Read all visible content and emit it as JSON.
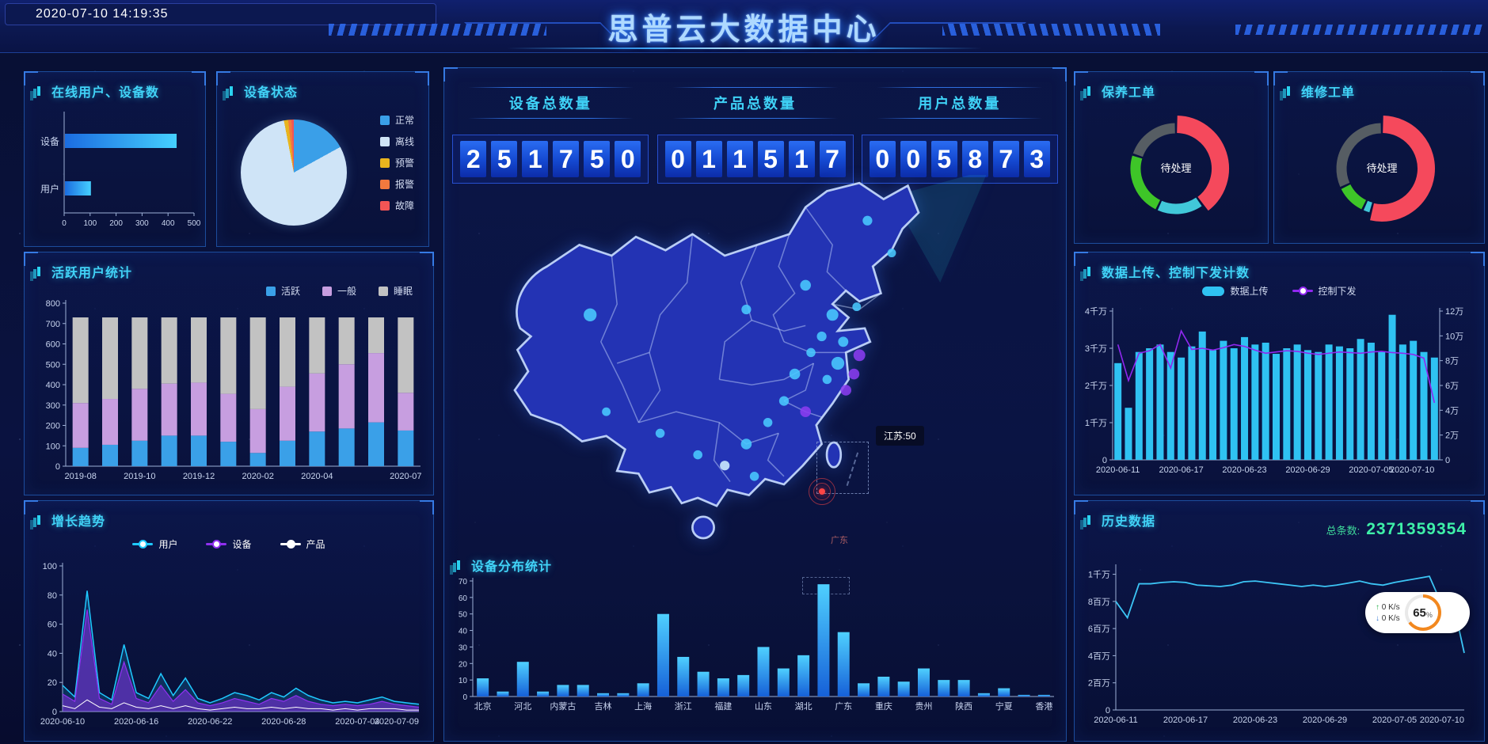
{
  "header": {
    "timestamp": "2020-07-10 14:19:35",
    "title": "思普云大数据中心"
  },
  "counters": [
    {
      "label": "设备总数量",
      "value": "251750"
    },
    {
      "label": "产品总数量",
      "value": "011517"
    },
    {
      "label": "用户总数量",
      "value": "005873"
    }
  ],
  "map": {
    "tooltip": "江苏:50",
    "region_label": "广东",
    "dot_colors": {
      "c": "#49c9ff",
      "p": "#8a3cf0",
      "w": "#cfeeff"
    },
    "points": [
      [
        38,
        52,
        2.4,
        "c"
      ],
      [
        141,
        17,
        1.8,
        "c"
      ],
      [
        150,
        29,
        1.6,
        "c"
      ],
      [
        96,
        50,
        1.8,
        "c"
      ],
      [
        118,
        41,
        2,
        "c"
      ],
      [
        128,
        52,
        2.2,
        "c"
      ],
      [
        137,
        49,
        1.6,
        "c"
      ],
      [
        124,
        60,
        1.8,
        "c"
      ],
      [
        132,
        62,
        1.9,
        "c"
      ],
      [
        138,
        67,
        2.2,
        "p"
      ],
      [
        130,
        70,
        2.4,
        "c"
      ],
      [
        136,
        74,
        2,
        "p"
      ],
      [
        126,
        76,
        1.7,
        "c"
      ],
      [
        133,
        80,
        2,
        "p"
      ],
      [
        120,
        66,
        1.7,
        "c"
      ],
      [
        114,
        74,
        2,
        "c"
      ],
      [
        110,
        84,
        1.8,
        "c"
      ],
      [
        118,
        88,
        2,
        "p"
      ],
      [
        104,
        92,
        1.7,
        "c"
      ],
      [
        96,
        100,
        2,
        "c"
      ],
      [
        88,
        108,
        1.8,
        "w"
      ],
      [
        99,
        112,
        1.7,
        "c"
      ],
      [
        78,
        104,
        1.7,
        "c"
      ],
      [
        64,
        96,
        1.7,
        "c"
      ],
      [
        44,
        88,
        1.6,
        "c"
      ]
    ]
  },
  "net_widget": {
    "up_label": "0 K/s",
    "down_label": "0 K/s",
    "percent": "65",
    "percent_suffix": "%"
  },
  "chart_data": [
    {
      "id": "online",
      "type": "bar",
      "orientation": "horizontal",
      "title": "在线用户、设备数",
      "categories": [
        "设备",
        "用户"
      ],
      "values": [
        430,
        100
      ],
      "xlim": [
        0,
        500
      ],
      "xticks": [
        0,
        100,
        200,
        300,
        400,
        500
      ]
    },
    {
      "id": "device_status",
      "type": "pie",
      "title": "设备状态",
      "legend_position": "right",
      "slices": [
        {
          "label": "正常",
          "value": 17,
          "color": "#3a9fe8"
        },
        {
          "label": "离线",
          "value": 80,
          "color": "#cfe4f7"
        },
        {
          "label": "预警",
          "value": 1.3,
          "color": "#e8b41e"
        },
        {
          "label": "报警",
          "value": 1,
          "color": "#f2793e"
        },
        {
          "label": "故障",
          "value": 0.7,
          "color": "#f25555"
        }
      ]
    },
    {
      "id": "active_users",
      "type": "bar",
      "stacked": true,
      "title": "活跃用户统计",
      "n_bars": 12,
      "xtick_labels": [
        "2019-08",
        "2019-10",
        "2019-12",
        "2020-02",
        "2020-04",
        "2020-07"
      ],
      "xtick_indices": [
        0,
        2,
        4,
        6,
        8,
        11
      ],
      "ylim": [
        0,
        800
      ],
      "ytick_step": 100,
      "series": [
        {
          "name": "活跃",
          "color": "#3aa0e8",
          "values": [
            90,
            105,
            125,
            150,
            150,
            120,
            65,
            125,
            170,
            185,
            215,
            175
          ]
        },
        {
          "name": "一般",
          "color": "#c79ee0",
          "values": [
            220,
            225,
            255,
            255,
            260,
            235,
            215,
            265,
            285,
            315,
            340,
            185
          ]
        },
        {
          "name": "睡眠",
          "color": "#c2c2c2",
          "values": [
            420,
            400,
            350,
            325,
            320,
            375,
            450,
            340,
            275,
            230,
            175,
            370
          ]
        }
      ]
    },
    {
      "id": "growth",
      "type": "line",
      "title": "增长趋势",
      "n_points": 30,
      "xtick_labels": [
        "2020-06-10",
        "2020-06-16",
        "2020-06-22",
        "2020-06-28",
        "2020-07-04",
        "2020-07-09"
      ],
      "xtick_indices": [
        0,
        6,
        12,
        18,
        24,
        29
      ],
      "ylim": [
        0,
        100
      ],
      "ytick_step": 20,
      "series": [
        {
          "name": "用户",
          "color": "#1fc9ff",
          "values": [
            18,
            10,
            83,
            13,
            8,
            46,
            13,
            9,
            26,
            11,
            23,
            9,
            6,
            9,
            13,
            11,
            8,
            13,
            10,
            16,
            11,
            8,
            6,
            7,
            6,
            8,
            10,
            7,
            6,
            5
          ]
        },
        {
          "name": "设备",
          "color": "#9030f0",
          "values": [
            12,
            7,
            70,
            9,
            5,
            34,
            9,
            6,
            18,
            7,
            15,
            6,
            4,
            6,
            9,
            7,
            5,
            9,
            7,
            11,
            7,
            5,
            4,
            5,
            4,
            5,
            7,
            5,
            4,
            3
          ]
        },
        {
          "name": "产品",
          "color": "#ffffff",
          "values": [
            4,
            2,
            8,
            3,
            2,
            6,
            3,
            2,
            4,
            2,
            4,
            2,
            1,
            2,
            3,
            2,
            2,
            3,
            2,
            3,
            2,
            2,
            1,
            2,
            1,
            2,
            2,
            2,
            1,
            1
          ]
        }
      ]
    },
    {
      "id": "distribution",
      "type": "bar",
      "title": "设备分布统计",
      "ylim": [
        0,
        70
      ],
      "ytick_step": 10,
      "label_every": 2,
      "visible_categories": [
        "北京",
        "河北",
        "内蒙古",
        "吉林",
        "上海",
        "浙江",
        "福建",
        "山东",
        "湖北",
        "广东",
        "重庆",
        "贵州",
        "陕西",
        "宁夏",
        "香港"
      ],
      "values": [
        11,
        3,
        21,
        3,
        7,
        7,
        2,
        2,
        8,
        50,
        24,
        15,
        11,
        13,
        30,
        17,
        25,
        68,
        39,
        8,
        12,
        9,
        17,
        10,
        10,
        2,
        5,
        1,
        1
      ]
    },
    {
      "id": "maintenance",
      "type": "pie",
      "donut": true,
      "title": "保养工单",
      "center_label": "待处理",
      "slices": [
        {
          "value": 40,
          "color": "#f5495c",
          "emphasis": true
        },
        {
          "value": 17,
          "color": "#41c8d9"
        },
        {
          "value": 23,
          "color": "#3ec528"
        },
        {
          "value": 20,
          "color": "#565d63"
        }
      ]
    },
    {
      "id": "repair",
      "type": "pie",
      "donut": true,
      "title": "维修工单",
      "center_label": "待处理",
      "slices": [
        {
          "value": 54,
          "color": "#f5495c",
          "emphasis": true
        },
        {
          "value": 3,
          "color": "#41c8d9"
        },
        {
          "value": 11,
          "color": "#3ec528"
        },
        {
          "value": 32,
          "color": "#565d63"
        }
      ]
    },
    {
      "id": "upload",
      "type": "bar",
      "title": "数据上传、控制下发计数",
      "legend": [
        "数据上传",
        "控制下发"
      ],
      "bar_color": "#2fc2f2",
      "line_color": "#9028f0",
      "left_axis": {
        "labels": [
          "4千万",
          "3千万",
          "2千万",
          "1千万",
          "0"
        ],
        "values": [
          4,
          3,
          2,
          1,
          0
        ],
        "max": 4
      },
      "right_axis": {
        "labels": [
          "12万",
          "10万",
          "8万",
          "6万",
          "4万",
          "2万",
          "0"
        ],
        "values": [
          12,
          10,
          8,
          6,
          4,
          2,
          0
        ],
        "max": 12
      },
      "xtick_labels": [
        "2020-06-11",
        "2020-06-17",
        "2020-06-23",
        "2020-06-29",
        "2020-07-05",
        "2020-07-10"
      ],
      "xtick_indices": [
        0,
        6,
        12,
        18,
        24,
        30
      ],
      "bars": [
        2.6,
        1.4,
        2.9,
        3.0,
        3.1,
        2.9,
        2.75,
        3.05,
        3.45,
        2.95,
        3.2,
        3.0,
        3.3,
        3.1,
        3.15,
        2.85,
        3.0,
        3.1,
        2.95,
        2.9,
        3.1,
        3.05,
        3.0,
        3.25,
        3.15,
        2.9,
        3.9,
        3.1,
        3.2,
        2.9,
        2.75
      ],
      "line": [
        9.3,
        6.4,
        8.6,
        8.8,
        9.3,
        7.4,
        10.4,
        8.9,
        9.0,
        8.85,
        9.05,
        9.3,
        9.15,
        8.85,
        8.6,
        8.7,
        8.8,
        8.75,
        8.6,
        8.5,
        8.6,
        8.7,
        8.65,
        8.6,
        8.7,
        8.75,
        8.65,
        8.6,
        8.5,
        8.2,
        4.6
      ]
    },
    {
      "id": "history",
      "type": "line",
      "title": "历史数据",
      "total_label": "总条数:",
      "total_value": "2371359354",
      "line_color": "#3cc5f5",
      "ymax": 10.5,
      "yticks": [
        {
          "value": 10,
          "label": "1千万"
        },
        {
          "value": 8,
          "label": "8百万"
        },
        {
          "value": 6,
          "label": "6百万"
        },
        {
          "value": 4,
          "label": "4百万"
        },
        {
          "value": 2,
          "label": "2百万"
        },
        {
          "value": 0,
          "label": "0"
        }
      ],
      "xtick_labels": [
        "2020-06-11",
        "2020-06-17",
        "2020-06-23",
        "2020-06-29",
        "2020-07-05",
        "2020-07-10"
      ],
      "xtick_indices": [
        0,
        6,
        12,
        18,
        24,
        30
      ],
      "values": [
        8.0,
        6.8,
        9.3,
        9.3,
        9.4,
        9.45,
        9.4,
        9.2,
        9.15,
        9.1,
        9.2,
        9.45,
        9.5,
        9.4,
        9.3,
        9.2,
        9.1,
        9.2,
        9.1,
        9.2,
        9.35,
        9.5,
        9.3,
        9.2,
        9.4,
        9.55,
        9.7,
        9.85,
        7.9,
        8.1,
        4.2
      ]
    }
  ]
}
